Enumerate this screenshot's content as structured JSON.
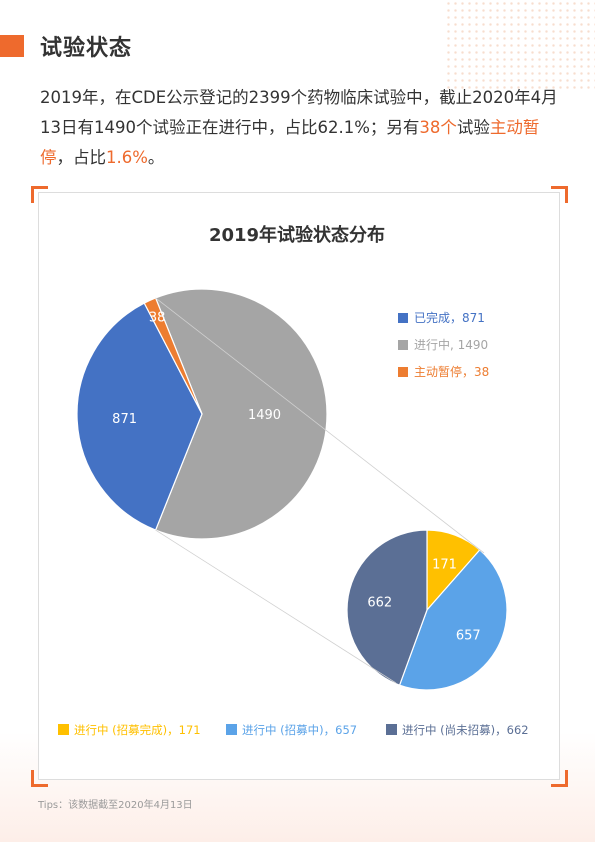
{
  "section": {
    "title": "试验状态"
  },
  "intro": {
    "part1": "2019年，在CDE公示登记的2399个药物临床试验中，截止2020年4月13日有1490个试验正在进行中，占比62.1%；另有",
    "highlight1": "38个",
    "part2": "试验",
    "highlight2": "主动暂停",
    "part3": "，占比",
    "highlight3": "1.6%",
    "part4": "。"
  },
  "footer": {
    "tips": "Tips：该数据截至2020年4月13日"
  },
  "colors": {
    "accent": "#ee6a2d",
    "completed": "#4472c4",
    "ongoing": "#a5a5a5",
    "paused": "#ed7d31",
    "recruit_done": "#ffc000",
    "recruiting": "#5ba3e8",
    "not_recruiting": "#5b6f95"
  },
  "chart_data": [
    {
      "type": "pie",
      "title": "2019年试验状态分布",
      "slices": [
        {
          "label": "已完成",
          "value": 871,
          "legend": "已完成，871",
          "color": "#4472c4"
        },
        {
          "label": "进行中",
          "value": 1490,
          "legend": "进行中, 1490",
          "color": "#a5a5a5"
        },
        {
          "label": "主动暂停",
          "value": 38,
          "legend": "主动暂停，38",
          "color": "#ed7d31"
        }
      ],
      "legend_position": "right"
    },
    {
      "type": "pie",
      "title": "",
      "breakdown_of": "进行中",
      "slices": [
        {
          "label": "进行中 (招募完成)",
          "value": 171,
          "legend": "进行中 (招募完成)，171",
          "color": "#ffc000"
        },
        {
          "label": "进行中 (招募中)",
          "value": 657,
          "legend": "进行中 (招募中)，657",
          "color": "#5ba3e8"
        },
        {
          "label": "进行中 (尚未招募)",
          "value": 662,
          "legend": "进行中 (尚未招募)，662",
          "color": "#5b6f95"
        }
      ],
      "legend_position": "bottom"
    }
  ]
}
